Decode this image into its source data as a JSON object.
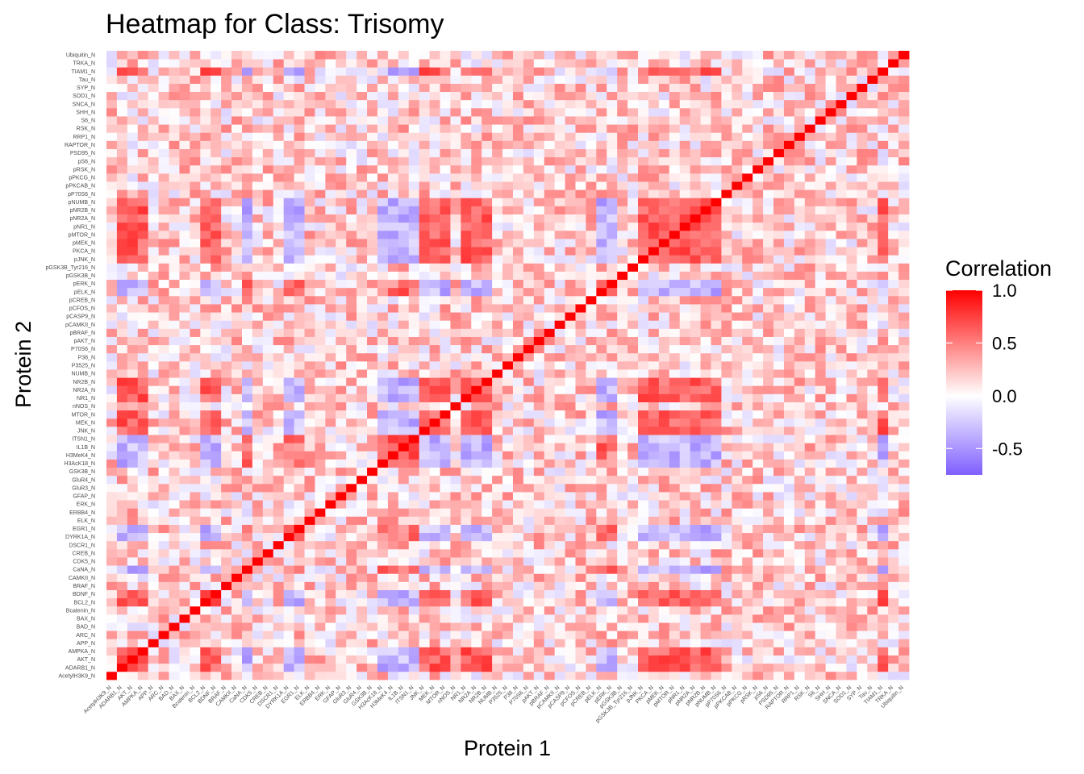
{
  "chart_data": {
    "type": "heatmap",
    "title": "Heatmap for Class: Trisomy",
    "xlabel": "Protein 1",
    "ylabel": "Protein 2",
    "proteins": [
      "AcetylH3K9_N",
      "ADARB1_N",
      "AKT_N",
      "AMPKA_N",
      "APP_N",
      "ARC_N",
      "BAD_N",
      "BAX_N",
      "Bcatenin_N",
      "BCL2_N",
      "BDNF_N",
      "BRAF_N",
      "CAMKII_N",
      "CaNA_N",
      "CDK5_N",
      "CREB_N",
      "DSCR1_N",
      "DYRK1A_N",
      "EGR1_N",
      "ELK_N",
      "ERBB4_N",
      "ERK_N",
      "GFAP_N",
      "GluR3_N",
      "GluR4_N",
      "GSK3B_N",
      "H3AcK18_N",
      "H3MeK4_N",
      "IL1B_N",
      "ITSN1_N",
      "JNK_N",
      "MEK_N",
      "MTOR_N",
      "nNOS_N",
      "NR1_N",
      "NR2A_N",
      "NR2B_N",
      "NUMB_N",
      "P3525_N",
      "P38_N",
      "P70S6_N",
      "pAKT_N",
      "pBRAF_N",
      "pCAMKII_N",
      "pCASP9_N",
      "pCFOS_N",
      "pCREB_N",
      "pELK_N",
      "pERK_N",
      "pGSK3B_N",
      "pGSK3B_Tyr216_N",
      "pJNK_N",
      "PKCA_N",
      "pMEK_N",
      "pMTOR_N",
      "pNR1_N",
      "pNR2A_N",
      "pNR2B_N",
      "pNUMB_N",
      "pP70S6_N",
      "pPKCAB_N",
      "pPKCG_N",
      "pRSK_N",
      "pS6_N",
      "PSD95_N",
      "RAPTOR_N",
      "RRP1_N",
      "RSK_N",
      "S6_N",
      "SHH_N",
      "SNCA_N",
      "SOD1_N",
      "SYP_N",
      "Tau_N",
      "TIAM1_N",
      "TRKA_N",
      "Ubiquitin_N"
    ],
    "color_scale": {
      "low": "#7f5fff",
      "mid": "#ffffff",
      "high": "#ff0000",
      "domain": [
        -0.75,
        1.0
      ]
    },
    "legend": {
      "title": "Correlation",
      "ticks": [
        1.0,
        0.5,
        0.0,
        -0.5
      ],
      "tick_labels": [
        "1.0",
        "0.5",
        "0.0",
        "-0.5"
      ],
      "position": "right"
    },
    "diagonal": 1.0,
    "groups": {
      "glutamate_cluster": [
        "JNK_N",
        "MEK_N",
        "MTOR_N",
        "NR1_N",
        "NR2A_N",
        "NR2B_N",
        "pMEK_N",
        "pMTOR_N",
        "pNR1_N",
        "pNR2A_N",
        "pNR2B_N",
        "PKCA_N",
        "pJNK_N",
        "pNUMB_N",
        "ADARB1_N",
        "AKT_N",
        "AMPKA_N",
        "BDNF_N",
        "BCL2_N",
        "TIAM1_N"
      ],
      "negative_cluster": [
        "DYRK1A_N",
        "ITSN1_N",
        "pELK_N",
        "pERK_N",
        "H3MeK4_N",
        "H3AcK18_N",
        "IL1B_N",
        "EGR1_N",
        "CaNA_N"
      ]
    },
    "values_note": ""
  }
}
